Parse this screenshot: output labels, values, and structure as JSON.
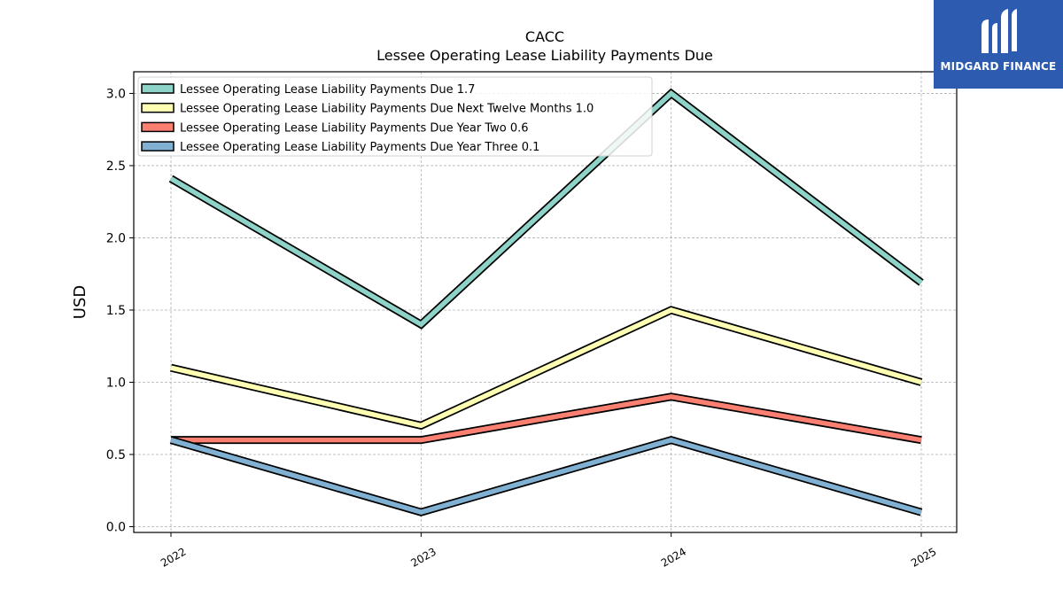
{
  "chart_data": {
    "type": "line",
    "title": "CACC",
    "subtitle": "Lessee Operating Lease Liability Payments Due",
    "ylabel": "USD",
    "xlabel": "",
    "x": [
      "2022",
      "2023",
      "2024",
      "2025"
    ],
    "ylim": [
      -0.04,
      3.15
    ],
    "yticks": [
      0.0,
      0.5,
      1.0,
      1.5,
      2.0,
      2.5,
      3.0
    ],
    "grid": true,
    "legend_position": "top-left",
    "series": [
      {
        "name": "Lessee Operating Lease Liability Payments Due  1.7",
        "color": "#8dd3c7",
        "values": [
          2.41,
          1.4,
          3.0,
          1.69
        ]
      },
      {
        "name": "Lessee Operating Lease Liability Payments Due Next Twelve Months  1.0",
        "color": "#ffffb3",
        "values": [
          1.1,
          0.7,
          1.5,
          1.0
        ]
      },
      {
        "name": "Lessee Operating Lease Liability Payments Due Year Two  0.6",
        "color": "#fb8072",
        "values": [
          0.6,
          0.6,
          0.9,
          0.6
        ]
      },
      {
        "name": "Lessee Operating Lease Liability Payments Due Year Three  0.1",
        "color": "#80b1d3",
        "values": [
          0.6,
          0.1,
          0.6,
          0.1
        ]
      }
    ]
  },
  "logo": {
    "text": "MIDGARD FINANCE",
    "color": "#2d5bb0"
  }
}
